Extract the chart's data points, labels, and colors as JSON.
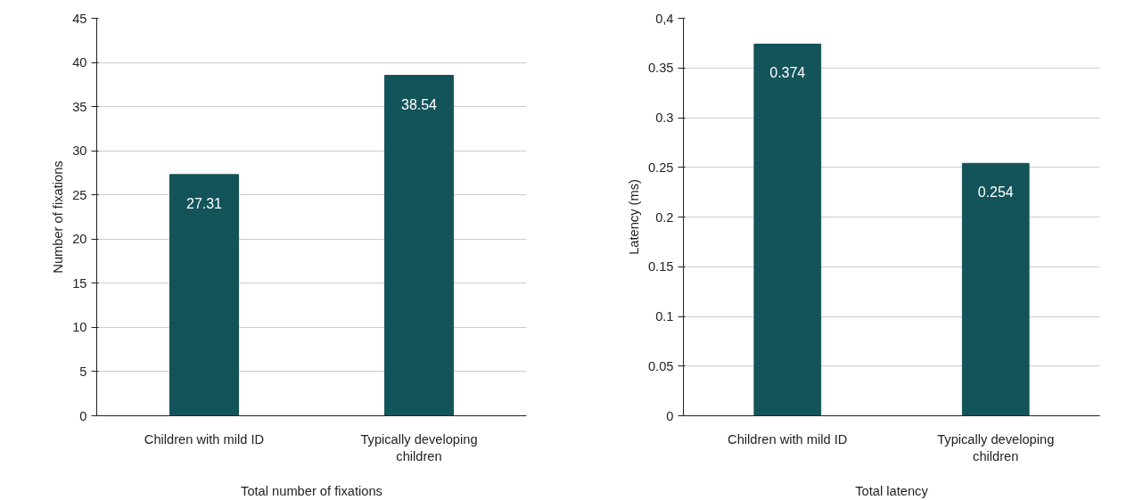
{
  "chart_data": [
    {
      "type": "bar",
      "xlabel": "Total number of fixations",
      "ylabel": "Number of fixations",
      "categories": [
        "Children with mild ID",
        "Typically developing children"
      ],
      "values": [
        27.31,
        38.54
      ],
      "color": "#13545a",
      "data_labels": true,
      "ylim": [
        0,
        45
      ],
      "yticks": [
        0,
        5,
        10,
        15,
        20,
        25,
        30,
        35,
        40,
        45
      ],
      "grid": "y"
    },
    {
      "type": "bar",
      "xlabel": "Total latency",
      "ylabel": "Latency (ms)",
      "categories": [
        "Children with mild ID",
        "Typically developing children"
      ],
      "values": [
        0.374,
        0.254
      ],
      "color": "#13545a",
      "data_labels": true,
      "ylim": [
        0,
        0.4
      ],
      "yticks": [
        0,
        0.05,
        0.1,
        0.15,
        0.2,
        0.25,
        0.3,
        0.35,
        {
          "value": 0.4,
          "label": "0,4"
        }
      ],
      "grid": "y"
    }
  ]
}
